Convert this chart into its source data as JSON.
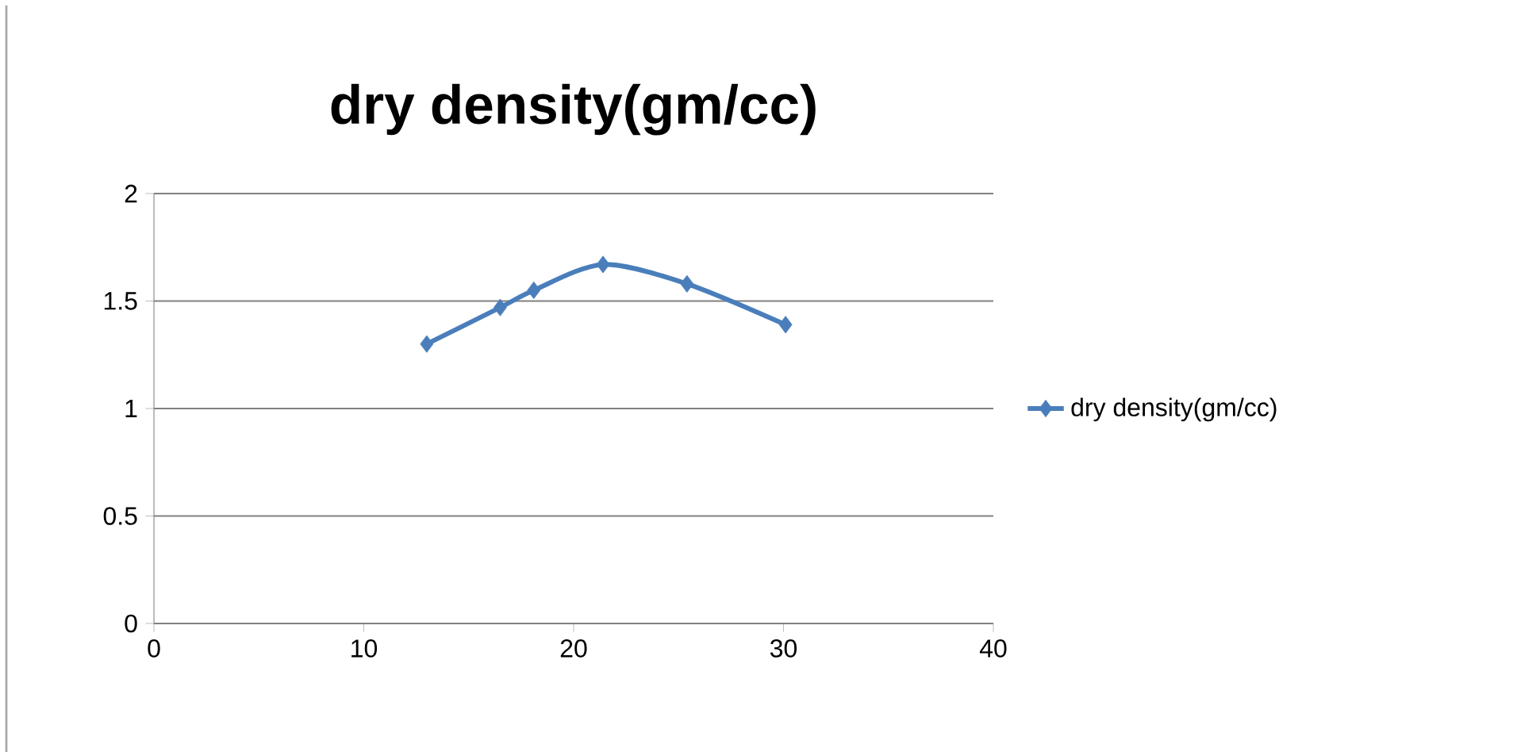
{
  "chart_data": {
    "type": "line",
    "title": "dry density(gm/cc)",
    "x": [
      13.0,
      16.5,
      18.1,
      21.4,
      25.4,
      30.1
    ],
    "series": [
      {
        "name": "dry density(gm/cc)",
        "color": "#4a7ebb",
        "values": [
          1.3,
          1.47,
          1.55,
          1.67,
          1.58,
          1.39
        ]
      }
    ],
    "xlim": [
      0,
      40
    ],
    "xticks": [
      0,
      10,
      20,
      30,
      40
    ],
    "ylim": [
      0,
      2
    ],
    "yticks": [
      0,
      0.5,
      1,
      1.5,
      2
    ],
    "grid": "y",
    "legend": "right",
    "marker": "diamond",
    "line_style": "solid"
  }
}
